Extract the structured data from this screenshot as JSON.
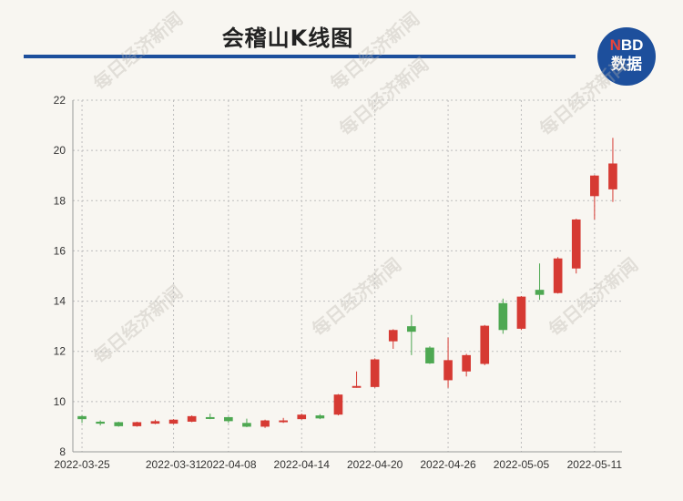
{
  "title": "会稽山K线图",
  "logo": {
    "line1_accent": "N",
    "line1_rest": "BD",
    "line2": "数据"
  },
  "watermark_text": "每日经济新闻",
  "colors": {
    "up": "#d63a33",
    "down": "#4ea852",
    "accent": "#1d4f9c",
    "grid": "#bdbdbd"
  },
  "chart_data": {
    "type": "candlestick",
    "grid": true,
    "ylim": [
      8,
      22
    ],
    "yticks": [
      8,
      10,
      12,
      14,
      16,
      18,
      20,
      22
    ],
    "xtick_labels": [
      "2022-03-25",
      "2022-03-31",
      "2022-04-08",
      "2022-04-14",
      "2022-04-20",
      "2022-04-26",
      "2022-05-05",
      "2022-05-11"
    ],
    "candles": [
      {
        "label": "2022-03-25",
        "open": 9.42,
        "close": 9.3,
        "high": 9.45,
        "low": 9.15
      },
      {
        "open": 9.2,
        "close": 9.12,
        "high": 9.25,
        "low": 9.05
      },
      {
        "open": 9.18,
        "close": 9.02,
        "high": 9.2,
        "low": 9.0
      },
      {
        "open": 9.02,
        "close": 9.18,
        "high": 9.2,
        "low": 9.0
      },
      {
        "open": 9.12,
        "close": 9.22,
        "high": 9.28,
        "low": 9.1
      },
      {
        "label": "2022-03-31",
        "open": 9.12,
        "close": 9.28,
        "high": 9.3,
        "low": 9.1
      },
      {
        "open": 9.2,
        "close": 9.42,
        "high": 9.45,
        "low": 9.18
      },
      {
        "open": 9.38,
        "close": 9.32,
        "high": 9.52,
        "low": 9.3
      },
      {
        "label": "2022-04-08",
        "open": 9.38,
        "close": 9.22,
        "high": 9.4,
        "low": 9.15
      },
      {
        "open": 9.15,
        "close": 9.0,
        "high": 9.32,
        "low": 8.98
      },
      {
        "open": 9.0,
        "close": 9.25,
        "high": 9.28,
        "low": 8.95
      },
      {
        "open": 9.2,
        "close": 9.25,
        "high": 9.35,
        "low": 9.15
      },
      {
        "label": "2022-04-14",
        "open": 9.3,
        "close": 9.48,
        "high": 9.52,
        "low": 9.28
      },
      {
        "open": 9.45,
        "close": 9.33,
        "high": 9.5,
        "low": 9.3
      },
      {
        "open": 9.48,
        "close": 10.28,
        "high": 10.3,
        "low": 9.45
      },
      {
        "open": 10.55,
        "close": 10.62,
        "high": 11.2,
        "low": 10.55
      },
      {
        "label": "2022-04-20",
        "open": 10.58,
        "close": 11.68,
        "high": 11.72,
        "low": 10.55
      },
      {
        "open": 12.4,
        "close": 12.85,
        "high": 12.88,
        "low": 12.1
      },
      {
        "open": 13.0,
        "close": 12.78,
        "high": 13.45,
        "low": 11.85
      },
      {
        "open": 12.15,
        "close": 11.52,
        "high": 12.2,
        "low": 11.5
      },
      {
        "label": "2022-04-26",
        "open": 10.85,
        "close": 11.65,
        "high": 12.55,
        "low": 10.55
      },
      {
        "open": 11.2,
        "close": 11.85,
        "high": 11.9,
        "low": 11.0
      },
      {
        "open": 11.5,
        "close": 13.02,
        "high": 13.05,
        "low": 11.45
      },
      {
        "open": 13.92,
        "close": 12.85,
        "high": 14.1,
        "low": 12.7
      },
      {
        "label": "2022-05-05",
        "open": 12.9,
        "close": 14.18,
        "high": 14.2,
        "low": 12.85
      },
      {
        "open": 14.45,
        "close": 14.25,
        "high": 15.5,
        "low": 14.05
      },
      {
        "open": 14.32,
        "close": 15.7,
        "high": 15.75,
        "low": 14.3
      },
      {
        "open": 15.3,
        "close": 17.25,
        "high": 17.28,
        "low": 15.1
      },
      {
        "label": "2022-05-11",
        "open": 18.18,
        "close": 19.0,
        "high": 19.02,
        "low": 17.25
      },
      {
        "open": 18.45,
        "close": 19.48,
        "high": 20.5,
        "low": 17.95
      }
    ]
  }
}
